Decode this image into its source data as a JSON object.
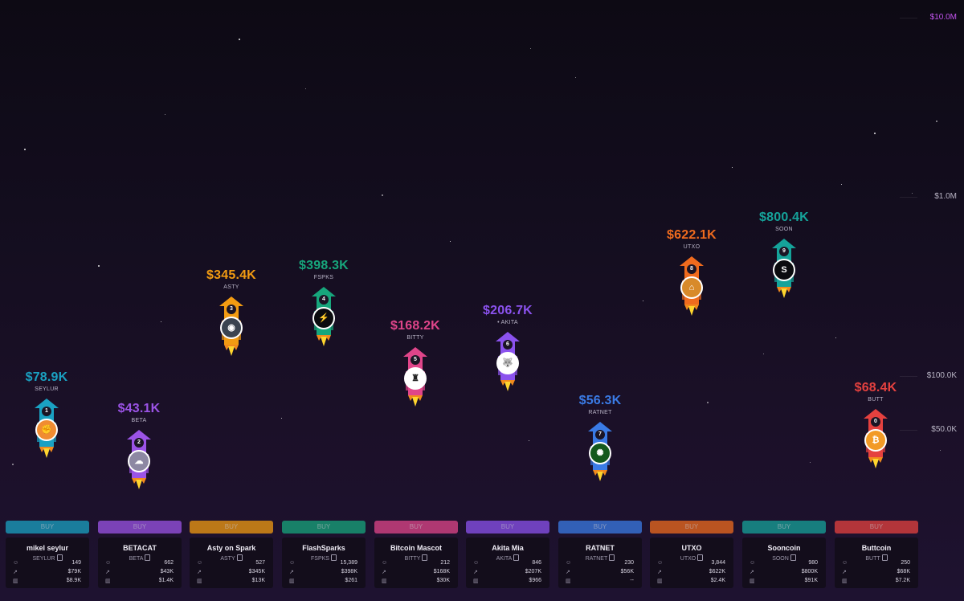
{
  "axis": {
    "labels": [
      "$10.0M",
      "$1.0M",
      "$100.0K",
      "$50.0K"
    ],
    "top_label_color": "#c455f0"
  },
  "coins": [
    {
      "rank": "1",
      "price": "$78.9K",
      "ticker": "SEYLUR",
      "name": "mikel seylur",
      "symbol": "SEYLUR",
      "holders": "149",
      "market_cap": "$79K",
      "volume": "$8.9K",
      "buy_label": "BUY",
      "color": "#1aa1c2",
      "avatar_bg": "#f08c32",
      "avatar_glyph": "✊",
      "avatar_icon": "fist-avatar-icon"
    },
    {
      "rank": "2",
      "price": "$43.1K",
      "ticker": "BETA",
      "name": "BETACAT",
      "symbol": "BETA",
      "holders": "662",
      "market_cap": "$43K",
      "volume": "$1.4K",
      "buy_label": "BUY",
      "color": "#9b53e6",
      "avatar_bg": "#8d88a3",
      "avatar_glyph": "☁",
      "avatar_icon": "cat-avatar-icon"
    },
    {
      "rank": "3",
      "price": "$345.4K",
      "ticker": "ASTY",
      "name": "Asty on Spark",
      "symbol": "ASTY",
      "holders": "527",
      "market_cap": "$345K",
      "volume": "$13K",
      "buy_label": "BUY",
      "color": "#f29b12",
      "avatar_bg": "#3b4450",
      "avatar_glyph": "◉",
      "avatar_icon": "asty-avatar-icon"
    },
    {
      "rank": "4",
      "price": "$398.3K",
      "ticker": "FSPKS",
      "name": "FlashSparks",
      "symbol": "FSPKS",
      "holders": "15,389",
      "market_cap": "$398K",
      "volume": "$261",
      "buy_label": "BUY",
      "color": "#17a67c",
      "avatar_bg": "#0b0b0f",
      "avatar_glyph": "⚡",
      "avatar_icon": "flash-avatar-icon"
    },
    {
      "rank": "5",
      "price": "$168.2K",
      "ticker": "BITTY",
      "name": "Bitcoin Mascot",
      "symbol": "BITTY",
      "holders": "212",
      "market_cap": "$168K",
      "volume": "$30K",
      "buy_label": "BUY",
      "color": "#e0458a",
      "avatar_bg": "#ffffff",
      "avatar_glyph": "♜",
      "avatar_icon": "mascot-avatar-icon"
    },
    {
      "rank": "6",
      "price": "$206.7K",
      "ticker": "• AKITA",
      "name": "Akita Mia",
      "symbol": "AKITA",
      "holders": "846",
      "market_cap": "$207K",
      "volume": "$966",
      "buy_label": "BUY",
      "color": "#8b52ee",
      "avatar_bg": "#ffffff",
      "avatar_glyph": "🐺",
      "avatar_icon": "dog-avatar-icon"
    },
    {
      "rank": "7",
      "price": "$56.3K",
      "ticker": "RATNET",
      "name": "RATNET",
      "symbol": "RATNET",
      "holders": "230",
      "market_cap": "$56K",
      "volume": "--",
      "buy_label": "BUY",
      "color": "#3a7be5",
      "avatar_bg": "#155a1e",
      "avatar_glyph": "✺",
      "avatar_icon": "ratnet-avatar-icon"
    },
    {
      "rank": "8",
      "price": "$622.1K",
      "ticker": "UTXO",
      "name": "UTXO",
      "symbol": "UTXO",
      "holders": "3,844",
      "market_cap": "$622K",
      "volume": "$2.4K",
      "buy_label": "BUY",
      "color": "#ef6b1e",
      "avatar_bg": "#d88a2a",
      "avatar_glyph": "⌂",
      "avatar_icon": "utxo-avatar-icon"
    },
    {
      "rank": "9",
      "price": "$800.4K",
      "ticker": "SOON",
      "name": "Sooncoin",
      "symbol": "SOON",
      "holders": "980",
      "market_cap": "$800K",
      "volume": "$91K",
      "buy_label": "BUY",
      "color": "#15a39a",
      "avatar_bg": "#0b0b0f",
      "avatar_glyph": "S",
      "avatar_icon": "soon-avatar-icon"
    },
    {
      "rank": "0",
      "price": "$68.4K",
      "ticker": "BUTT",
      "name": "Buttcoin",
      "symbol": "BUTT",
      "holders": "250",
      "market_cap": "$68K",
      "volume": "$7.2K",
      "buy_label": "BUY",
      "color": "#e5413f",
      "avatar_bg": "#f29a25",
      "avatar_glyph": "₿",
      "avatar_icon": "buttcoin-avatar-icon"
    }
  ]
}
